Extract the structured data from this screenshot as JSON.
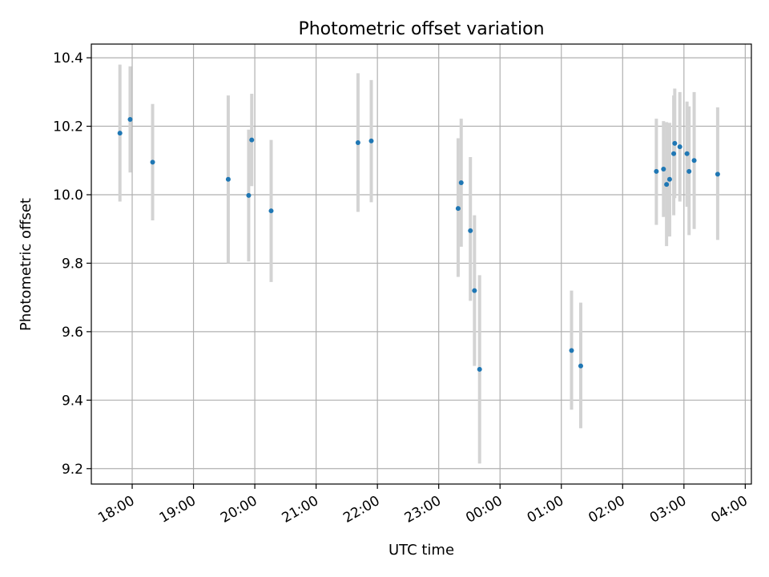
{
  "chart_data": {
    "type": "scatter",
    "title": "Photometric offset variation",
    "xlabel": "UTC time",
    "ylabel": "Photometric offset",
    "ylim": [
      9.155,
      10.44
    ],
    "xlim": [
      "17:20",
      "04:06"
    ],
    "x_ticks": [
      "18:00",
      "19:00",
      "20:00",
      "21:00",
      "22:00",
      "23:00",
      "00:00",
      "01:00",
      "02:00",
      "03:00",
      "04:00"
    ],
    "y_ticks": [
      "9.2",
      "9.4",
      "9.6",
      "9.8",
      "10.0",
      "10.2",
      "10.4"
    ],
    "y_tick_values": [
      9.2,
      9.4,
      9.6,
      9.8,
      10.0,
      10.2,
      10.4
    ],
    "grid": true,
    "point_color": "#1f77b4",
    "errorbar_color": "#d3d3d3",
    "points": [
      {
        "x": "17:48",
        "y": 10.18,
        "ylow": 9.98,
        "yhigh": 10.38
      },
      {
        "x": "17:58",
        "y": 10.22,
        "ylow": 10.065,
        "yhigh": 10.375
      },
      {
        "x": "18:20",
        "y": 10.095,
        "ylow": 9.925,
        "yhigh": 10.265
      },
      {
        "x": "19:34",
        "y": 10.045,
        "ylow": 9.8,
        "yhigh": 10.29
      },
      {
        "x": "19:54",
        "y": 9.998,
        "ylow": 9.805,
        "yhigh": 10.19
      },
      {
        "x": "19:57",
        "y": 10.16,
        "ylow": 10.025,
        "yhigh": 10.295
      },
      {
        "x": "20:16",
        "y": 9.953,
        "ylow": 9.745,
        "yhigh": 10.16
      },
      {
        "x": "21:41",
        "y": 10.152,
        "ylow": 9.95,
        "yhigh": 10.355
      },
      {
        "x": "21:54",
        "y": 10.157,
        "ylow": 9.978,
        "yhigh": 10.335
      },
      {
        "x": "23:19",
        "y": 9.96,
        "ylow": 9.76,
        "yhigh": 10.165
      },
      {
        "x": "23:22",
        "y": 10.035,
        "ylow": 9.848,
        "yhigh": 10.222
      },
      {
        "x": "23:31",
        "y": 9.895,
        "ylow": 9.69,
        "yhigh": 10.11
      },
      {
        "x": "23:35",
        "y": 9.72,
        "ylow": 9.5,
        "yhigh": 9.94
      },
      {
        "x": "23:40",
        "y": 9.49,
        "ylow": 9.215,
        "yhigh": 9.765
      },
      {
        "x": "01:10",
        "y": 9.545,
        "ylow": 9.372,
        "yhigh": 9.72
      },
      {
        "x": "01:19",
        "y": 9.5,
        "ylow": 9.318,
        "yhigh": 9.685
      },
      {
        "x": "02:33",
        "y": 10.068,
        "ylow": 9.912,
        "yhigh": 10.222
      },
      {
        "x": "02:40",
        "y": 10.075,
        "ylow": 9.935,
        "yhigh": 10.215
      },
      {
        "x": "02:43",
        "y": 10.03,
        "ylow": 9.85,
        "yhigh": 10.212
      },
      {
        "x": "02:46",
        "y": 10.045,
        "ylow": 9.878,
        "yhigh": 10.21
      },
      {
        "x": "02:50",
        "y": 10.12,
        "ylow": 9.94,
        "yhigh": 10.29
      },
      {
        "x": "02:51",
        "y": 10.15,
        "ylow": 9.99,
        "yhigh": 10.31
      },
      {
        "x": "02:56",
        "y": 10.14,
        "ylow": 9.98,
        "yhigh": 10.3
      },
      {
        "x": "03:03",
        "y": 10.12,
        "ylow": 9.965,
        "yhigh": 10.272
      },
      {
        "x": "03:05",
        "y": 10.068,
        "ylow": 9.882,
        "yhigh": 10.258
      },
      {
        "x": "03:10",
        "y": 10.1,
        "ylow": 9.9,
        "yhigh": 10.3
      },
      {
        "x": "03:33",
        "y": 10.06,
        "ylow": 9.868,
        "yhigh": 10.255
      }
    ]
  }
}
